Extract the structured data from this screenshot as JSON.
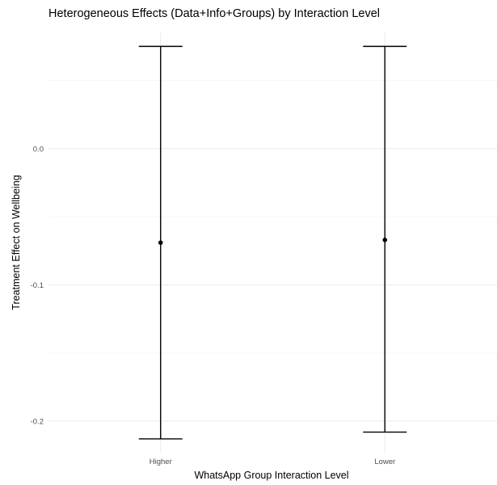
{
  "chart_data": {
    "type": "errorbar",
    "title": "Heterogeneous Effects (Data+Info+Groups) by Interaction Level",
    "xlabel": "WhatsApp Group Interaction Level",
    "ylabel": "Treatment Effect on Wellbeing",
    "categories": [
      "Higher",
      "Lower"
    ],
    "series": [
      {
        "points": [
          {
            "category": "Higher",
            "estimate": -0.069,
            "lower": -0.213,
            "upper": 0.075
          },
          {
            "category": "Lower",
            "estimate": -0.067,
            "lower": -0.208,
            "upper": 0.075
          }
        ]
      }
    ],
    "y_ticks": [
      {
        "value": 0.0,
        "label": "0.0"
      },
      {
        "value": -0.1,
        "label": "-0.1"
      },
      {
        "value": -0.2,
        "label": "-0.2"
      }
    ],
    "ylim": [
      -0.2231,
      0.0853
    ],
    "grid": true,
    "colors": {
      "background": "#ffffff",
      "grid": "#ebebeb",
      "mark": "#000000"
    }
  }
}
